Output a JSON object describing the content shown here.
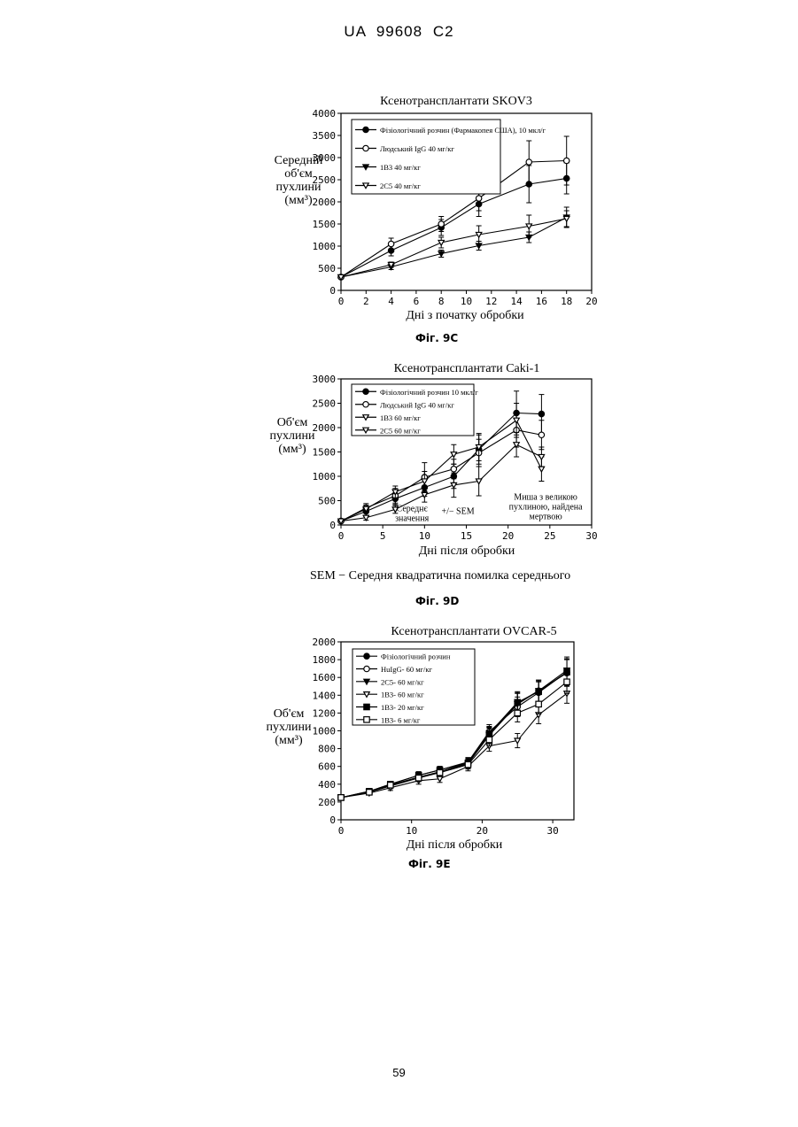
{
  "page": {
    "header": "UA 99608 C2",
    "page_number": "59",
    "sem_note": "SEM − Середня квадратична помилка середнього"
  },
  "chart_data": [
    {
      "type": "line",
      "figure_label": "Фіг. 9C",
      "title": "Ксенотрансплантати SKOV3",
      "xlabel": "Дні з початку обробки",
      "ylabel": [
        "Середній",
        "об'єм",
        "пухлини",
        "(мм³)"
      ],
      "xlim": [
        0,
        20
      ],
      "ylim": [
        0,
        4000
      ],
      "xticks": [
        "0",
        "2",
        "4",
        "6",
        "8",
        "10",
        "12",
        "14",
        "16",
        "18",
        "20"
      ],
      "yticks": [
        "0",
        "500",
        "1000",
        "1500",
        "2000",
        "2500",
        "3000",
        "3500",
        "4000"
      ],
      "legend_position": "top-left",
      "series": [
        {
          "name": "Фізіологічний розчин (Фармакопея США), 10 мкл/г",
          "marker": "filled-circle",
          "x": [
            0,
            4,
            8,
            11,
            15,
            18
          ],
          "values": [
            300,
            900,
            1420,
            1950,
            2400,
            2530
          ],
          "err": [
            0,
            120,
            180,
            280,
            420,
            350
          ]
        },
        {
          "name": "Людський IgG 40 мг/кг",
          "marker": "open-circle",
          "x": [
            0,
            4,
            8,
            11,
            15,
            18
          ],
          "values": [
            300,
            1050,
            1500,
            2080,
            2900,
            2930
          ],
          "err": [
            0,
            130,
            170,
            280,
            480,
            550
          ]
        },
        {
          "name": "1B3 40 мг/кг",
          "marker": "filled-triangle-down",
          "x": [
            0,
            4,
            8,
            11,
            15,
            18
          ],
          "values": [
            300,
            530,
            830,
            1010,
            1200,
            1650
          ],
          "err": [
            0,
            60,
            80,
            100,
            120,
            230
          ]
        },
        {
          "name": "2C5 40 мг/кг",
          "marker": "open-triangle-down",
          "x": [
            0,
            4,
            8,
            11,
            15,
            18
          ],
          "values": [
            300,
            580,
            1080,
            1260,
            1450,
            1620
          ],
          "err": [
            0,
            60,
            120,
            200,
            250,
            180
          ]
        }
      ]
    },
    {
      "type": "line",
      "figure_label": "Фіг. 9D",
      "title": "Ксенотрансплантати Caki-1",
      "xlabel": "Дні після обробки",
      "ylabel": [
        "Об'єм",
        "пухлини",
        "(мм³)"
      ],
      "xlim": [
        0,
        30
      ],
      "ylim": [
        0,
        3000
      ],
      "xticks": [
        "0",
        "5",
        "10",
        "15",
        "20",
        "25",
        "30"
      ],
      "yticks": [
        "0",
        "500",
        "1000",
        "1500",
        "2000",
        "2500",
        "3000"
      ],
      "legend_position": "top-left",
      "annotations": [
        {
          "text": [
            "Середнє",
            "значення"
          ],
          "x": 8.5,
          "y": 280
        },
        {
          "text": [
            "+/− SEM"
          ],
          "x": 14,
          "y": 230
        },
        {
          "text": [
            "Миша з великою",
            "пухлиною, найдена",
            "мертвою"
          ],
          "x": 24.5,
          "y": 520
        }
      ],
      "series": [
        {
          "name": "Фізіологічний розчин 10 мкл/г",
          "marker": "filled-circle",
          "x": [
            0,
            3,
            6.5,
            10,
            13.5,
            16.5,
            21,
            24
          ],
          "values": [
            80,
            280,
            540,
            770,
            1000,
            1550,
            2300,
            2280
          ],
          "err": [
            0,
            80,
            120,
            180,
            250,
            300,
            450,
            400
          ]
        },
        {
          "name": "Людський IgG 40 мг/кг",
          "marker": "open-circle",
          "x": [
            0,
            3,
            6.5,
            10,
            13.5,
            16.5,
            21,
            24
          ],
          "values": [
            80,
            350,
            600,
            980,
            1150,
            1480,
            1950,
            1850
          ],
          "err": [
            0,
            90,
            150,
            300,
            200,
            280,
            350,
            300
          ]
        },
        {
          "name": "1B3 60 мг/кг",
          "marker": "open-triangle-down",
          "x": [
            0,
            3,
            6.5,
            10,
            13.5,
            16.5,
            21,
            24
          ],
          "values": [
            80,
            330,
            680,
            900,
            1450,
            1600,
            2150,
            1150
          ],
          "err": [
            0,
            80,
            120,
            200,
            200,
            280,
            350,
            250
          ]
        },
        {
          "name": "2C5 60 мг/кг",
          "marker": "open-triangle-down",
          "x": [
            0,
            3,
            6.5,
            10,
            13.5,
            16.5,
            21,
            24
          ],
          "values": [
            80,
            150,
            320,
            620,
            820,
            900,
            1650,
            1400
          ],
          "err": [
            0,
            50,
            80,
            150,
            250,
            300,
            250,
            200
          ]
        }
      ]
    },
    {
      "type": "line",
      "figure_label": "Фіг. 9E",
      "title": "Ксенотрансплантати OVCAR-5",
      "xlabel": "Дні після обробки",
      "ylabel": [
        "Об'єм",
        "пухлини",
        "(мм³)"
      ],
      "xlim": [
        0,
        33
      ],
      "ylim": [
        0,
        2000
      ],
      "xticks": [
        "0",
        "10",
        "20",
        "30"
      ],
      "xtick_values": [
        0,
        10,
        20,
        30
      ],
      "yticks": [
        "0",
        "200",
        "400",
        "600",
        "800",
        "1000",
        "1200",
        "1400",
        "1600",
        "1800",
        "2000"
      ],
      "legend_position": "top-left",
      "series": [
        {
          "name": "Фізіологічний розчин",
          "marker": "filled-circle",
          "x": [
            0,
            4,
            7,
            11,
            14,
            18,
            21,
            25,
            28,
            32
          ],
          "values": [
            250,
            310,
            390,
            480,
            540,
            640,
            960,
            1310,
            1450,
            1650
          ],
          "err": [
            0,
            20,
            30,
            40,
            40,
            50,
            80,
            120,
            120,
            150
          ]
        },
        {
          "name": "HuIgG- 60 мг/кг",
          "marker": "open-circle",
          "x": [
            0,
            4,
            7,
            11,
            14,
            18,
            21,
            25,
            28,
            32
          ],
          "values": [
            250,
            320,
            400,
            500,
            560,
            650,
            990,
            1270,
            1430,
            1660
          ],
          "err": [
            0,
            20,
            30,
            40,
            40,
            50,
            80,
            110,
            120,
            150
          ]
        },
        {
          "name": "2C5- 60 мг/кг",
          "marker": "filled-triangle-down",
          "x": [
            0,
            4,
            7,
            11,
            14,
            18,
            21,
            25,
            28,
            32
          ],
          "values": [
            250,
            310,
            380,
            470,
            540,
            630,
            950,
            1300,
            1450,
            1680
          ],
          "err": [
            0,
            20,
            30,
            40,
            40,
            50,
            80,
            120,
            120,
            150
          ]
        },
        {
          "name": "1B3- 60 мг/кг",
          "marker": "open-triangle-down",
          "x": [
            0,
            4,
            7,
            11,
            14,
            18,
            21,
            25,
            28,
            32
          ],
          "values": [
            250,
            300,
            360,
            440,
            460,
            600,
            830,
            890,
            1180,
            1420
          ],
          "err": [
            0,
            20,
            30,
            40,
            40,
            50,
            60,
            80,
            100,
            110
          ]
        },
        {
          "name": "1B3- 20 мг/кг",
          "marker": "filled-square",
          "x": [
            0,
            4,
            7,
            11,
            14,
            18,
            21,
            25,
            28,
            32
          ],
          "values": [
            250,
            320,
            400,
            500,
            560,
            640,
            970,
            1320,
            1440,
            1660
          ],
          "err": [
            0,
            20,
            30,
            40,
            40,
            50,
            80,
            120,
            120,
            150
          ]
        },
        {
          "name": "1B3- 6 мг/кг",
          "marker": "open-square",
          "x": [
            0,
            4,
            7,
            11,
            14,
            18,
            21,
            25,
            28,
            32
          ],
          "values": [
            250,
            310,
            390,
            470,
            530,
            620,
            900,
            1200,
            1300,
            1550
          ],
          "err": [
            0,
            20,
            30,
            40,
            40,
            50,
            70,
            100,
            110,
            130
          ]
        }
      ]
    }
  ]
}
